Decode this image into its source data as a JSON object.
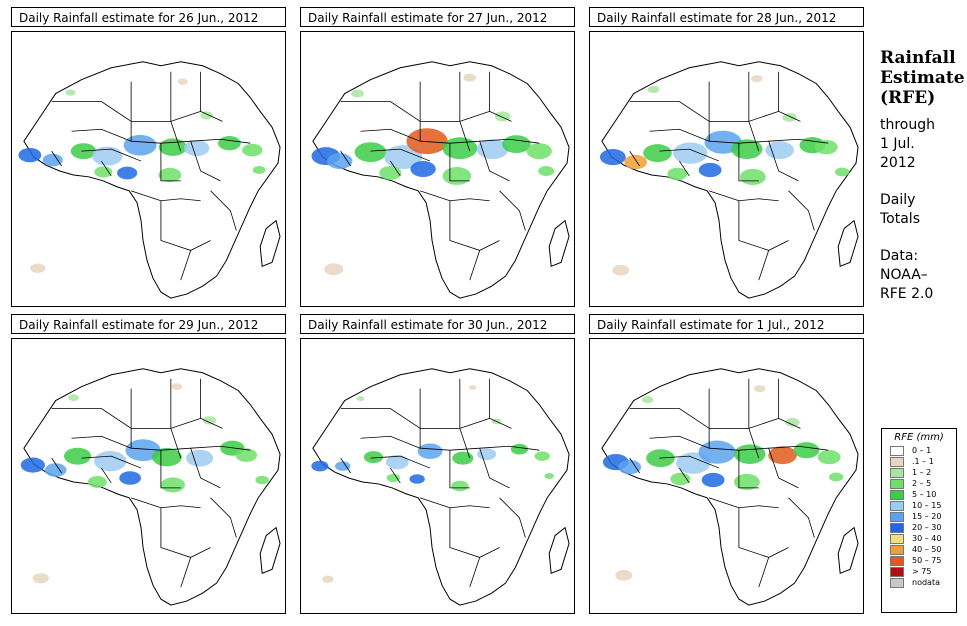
{
  "panels": [
    {
      "title": "Daily Rainfall estimate for  26 Jun., 2012",
      "intensity": 0.8
    },
    {
      "title": "Daily Rainfall estimate for  27 Jun., 2012",
      "intensity": 1.0
    },
    {
      "title": "Daily Rainfall estimate for  28 Jun., 2012",
      "intensity": 0.9
    },
    {
      "title": "Daily Rainfall estimate for  29 Jun., 2012",
      "intensity": 0.85
    },
    {
      "title": "Daily Rainfall estimate for  30 Jun., 2012",
      "intensity": 0.6
    },
    {
      "title": "Daily Rainfall estimate for  1 Jul., 2012",
      "intensity": 0.9
    }
  ],
  "side": {
    "title_line1": "Rainfall",
    "title_line2": "Estimate",
    "title_line3": "(RFE)",
    "through_label": "through",
    "date_line1": "1 Jul.",
    "date_line2": "2012",
    "totals_line1": "Daily",
    "totals_line2": "Totals",
    "data_label": "Data:",
    "source_line1": "NOAA–",
    "source_line2": "RFE 2.0"
  },
  "legend": {
    "title": "RFE (mm)",
    "items": [
      {
        "label": "0 – 1",
        "color": "#ffffff"
      },
      {
        "label": ".1 – 1",
        "color": "#e8d6c0"
      },
      {
        "label": "1 – 2",
        "color": "#a8e6a0"
      },
      {
        "label": "2 – 5",
        "color": "#6ee06a"
      },
      {
        "label": "5 – 10",
        "color": "#3ccc46"
      },
      {
        "label": "10 – 15",
        "color": "#9ecbf2"
      },
      {
        "label": "15 – 20",
        "color": "#5ba3ee"
      },
      {
        "label": "20 – 30",
        "color": "#1f68e0"
      },
      {
        "label": "30 – 40",
        "color": "#f2e07a"
      },
      {
        "label": "40 – 50",
        "color": "#f0a030"
      },
      {
        "label": "50 – 75",
        "color": "#e05a1c"
      },
      {
        "label": "> 75",
        "color": "#b01010"
      },
      {
        "label": "nodata",
        "color": "#c8c8c8"
      }
    ]
  }
}
